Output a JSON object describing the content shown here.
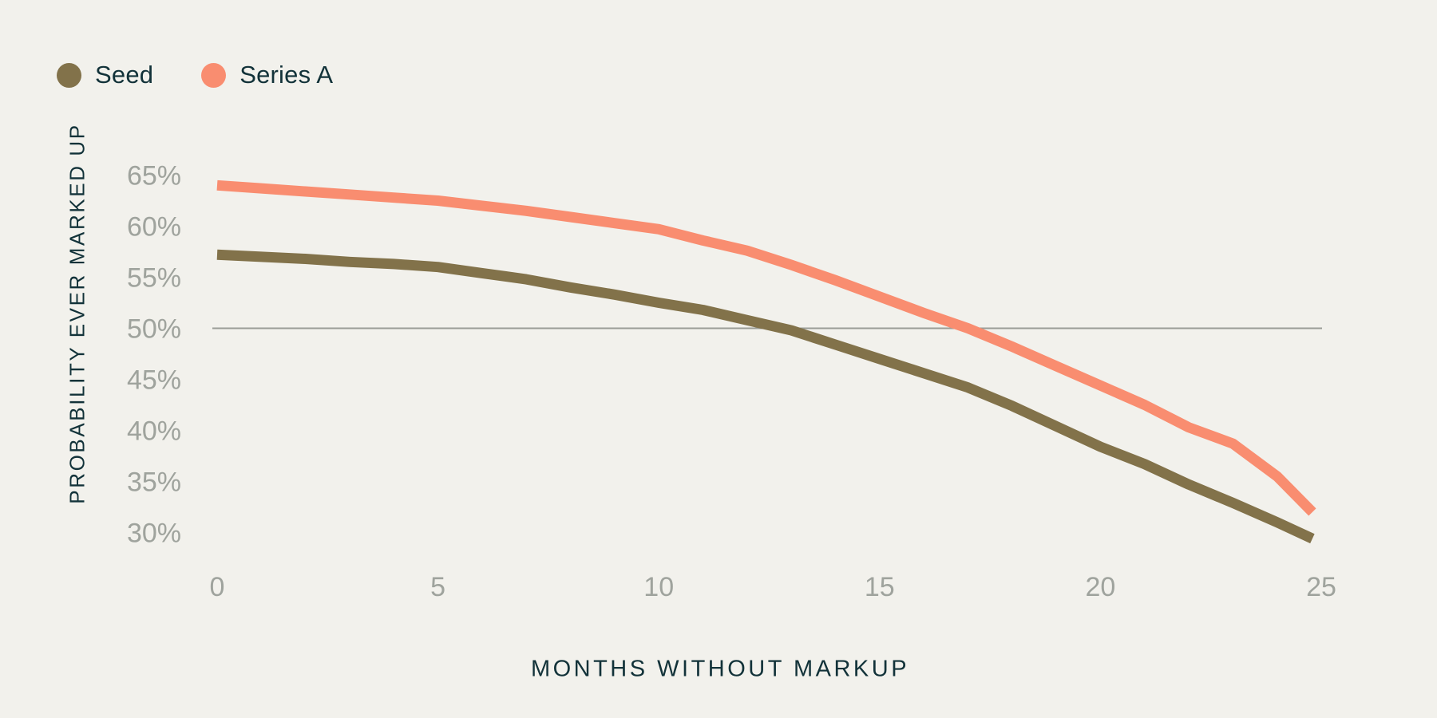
{
  "background": "#f2f1ec",
  "colors": {
    "text_dark": "#123239",
    "tick_gray": "#9fa39d",
    "gridline": "#9a9d97",
    "seed": "#82724a",
    "series_a": "#f98d70"
  },
  "legend": {
    "items": [
      {
        "label": "Seed",
        "color_key": "seed"
      },
      {
        "label": "Series A",
        "color_key": "series_a"
      }
    ]
  },
  "chart_data": {
    "type": "line",
    "title": "",
    "xlabel": "MONTHS WITHOUT MARKUP",
    "ylabel": "PROBABILITY EVER MARKED UP",
    "x": [
      0,
      1,
      2,
      3,
      4,
      5,
      6,
      7,
      8,
      9,
      10,
      11,
      12,
      13,
      14,
      15,
      16,
      17,
      18,
      19,
      20,
      21,
      22,
      23,
      24,
      24.8
    ],
    "series": [
      {
        "name": "Seed",
        "color_key": "seed",
        "values": [
          57.2,
          57.0,
          56.8,
          56.5,
          56.3,
          56.0,
          55.4,
          54.8,
          54.0,
          53.3,
          52.5,
          51.8,
          50.8,
          49.8,
          48.4,
          47.0,
          45.6,
          44.2,
          42.4,
          40.4,
          38.4,
          36.7,
          34.7,
          32.9,
          31.0,
          29.4
        ]
      },
      {
        "name": "Series A",
        "color_key": "series_a",
        "values": [
          64.0,
          63.7,
          63.4,
          63.1,
          62.8,
          62.5,
          62.0,
          61.5,
          60.9,
          60.3,
          59.7,
          58.6,
          57.6,
          56.2,
          54.7,
          53.1,
          51.5,
          50.0,
          48.2,
          46.3,
          44.4,
          42.5,
          40.3,
          38.7,
          35.5,
          32.0
        ]
      }
    ],
    "xticks": [
      0,
      5,
      10,
      15,
      20,
      25
    ],
    "ytick_values": [
      65,
      60,
      55,
      50,
      45,
      40,
      35,
      30
    ],
    "ytick_suffix": "%",
    "xlim": [
      0,
      25
    ],
    "gridline_at": 50,
    "grid": "single horizontal reference line at 50%",
    "legend_entries": [
      "Seed",
      "Series A"
    ],
    "legend_position": "top-left"
  }
}
